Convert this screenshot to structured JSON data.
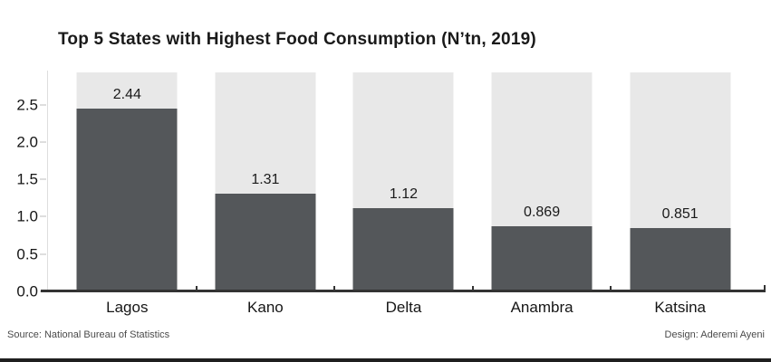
{
  "chart_data": {
    "type": "bar",
    "title": "Top 5 States with Highest Food Consumption (N’tn, 2019)",
    "categories": [
      "Lagos",
      "Kano",
      "Delta",
      "Anambra",
      "Katsina"
    ],
    "values": [
      2.44,
      1.31,
      1.12,
      0.869,
      0.851
    ],
    "value_labels": [
      "2.44",
      "1.31",
      "1.12",
      "0.869",
      "0.851"
    ],
    "yticks": [
      "0.0",
      "0.5",
      "1.0",
      "1.5",
      "2.0",
      "2.5"
    ],
    "ylim": [
      0,
      2.93
    ],
    "xlabel": "",
    "ylabel": "",
    "grid": false,
    "legend": "none",
    "background_bars": true
  },
  "footer": {
    "source": "Source: National Bureau of Statistics",
    "design": "Design: Aderemi Ayeni"
  },
  "colors": {
    "bar": "#54575a",
    "bar_background": "#e8e8e8",
    "axis_line": "#333333",
    "tick": "#dedede",
    "text": "#1a1a1a",
    "footer_text": "#4a4a4a",
    "bottom_strip": "#1f1f1f"
  }
}
